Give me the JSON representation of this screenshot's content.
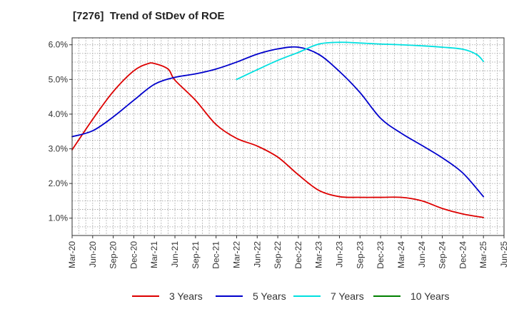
{
  "chart_data": {
    "type": "line",
    "title": "[7276]  Trend of StDev of ROE",
    "xlabel": "",
    "ylabel": "",
    "x_ticks": [
      "Mar-20",
      "Jun-20",
      "Sep-20",
      "Dec-20",
      "Mar-21",
      "Jun-21",
      "Sep-21",
      "Dec-21",
      "Mar-22",
      "Jun-22",
      "Sep-22",
      "Dec-22",
      "Mar-23",
      "Jun-23",
      "Sep-23",
      "Dec-23",
      "Mar-24",
      "Jun-24",
      "Sep-24",
      "Dec-24",
      "Mar-25",
      "Jun-25"
    ],
    "y_ticks": [
      "1.0%",
      "2.0%",
      "3.0%",
      "4.0%",
      "5.0%",
      "6.0%"
    ],
    "ylim": [
      0.5,
      6.2
    ],
    "grid": true,
    "legend_position": "bottom",
    "series": [
      {
        "name": "3 Years",
        "color": "#dd0000",
        "x": [
          "Mar-20",
          "Jun-20",
          "Sep-20",
          "Dec-20",
          "Feb-21",
          "Mar-21",
          "May-21",
          "Jun-21",
          "Sep-21",
          "Dec-21",
          "Mar-22",
          "Jun-22",
          "Sep-22",
          "Dec-22",
          "Mar-23",
          "Jun-23",
          "Sep-23",
          "Dec-23",
          "Mar-24",
          "Jun-24",
          "Sep-24",
          "Dec-24",
          "Mar-25"
        ],
        "values": [
          2.97,
          3.85,
          4.65,
          5.25,
          5.45,
          5.46,
          5.3,
          4.98,
          4.4,
          3.7,
          3.3,
          3.08,
          2.76,
          2.25,
          1.8,
          1.62,
          1.6,
          1.6,
          1.6,
          1.5,
          1.28,
          1.12,
          1.02
        ]
      },
      {
        "name": "5 Years",
        "color": "#0000cc",
        "x": [
          "Mar-20",
          "Jun-20",
          "Sep-20",
          "Dec-20",
          "Mar-21",
          "Jun-21",
          "Sep-21",
          "Dec-21",
          "Mar-22",
          "Jun-22",
          "Sep-22",
          "Dec-22",
          "Mar-23",
          "Jun-23",
          "Sep-23",
          "Dec-23",
          "Mar-24",
          "Jun-24",
          "Sep-24",
          "Dec-24",
          "Mar-25"
        ],
        "values": [
          3.35,
          3.52,
          3.92,
          4.4,
          4.86,
          5.06,
          5.16,
          5.3,
          5.5,
          5.73,
          5.88,
          5.93,
          5.72,
          5.23,
          4.62,
          3.88,
          3.45,
          3.1,
          2.74,
          2.3,
          1.62
        ]
      },
      {
        "name": "7 Years",
        "color": "#00e0e0",
        "x": [
          "Mar-22",
          "Jun-22",
          "Sep-22",
          "Dec-22",
          "Mar-23",
          "Jun-23",
          "Sep-23",
          "Dec-23",
          "Mar-24",
          "Jun-24",
          "Sep-24",
          "Dec-24",
          "Feb-25",
          "Mar-25"
        ],
        "values": [
          5.0,
          5.28,
          5.55,
          5.78,
          6.02,
          6.07,
          6.05,
          6.02,
          6.0,
          5.97,
          5.93,
          5.87,
          5.72,
          5.52
        ]
      },
      {
        "name": "10 Years",
        "color": "#008000",
        "x": [],
        "values": []
      }
    ]
  }
}
